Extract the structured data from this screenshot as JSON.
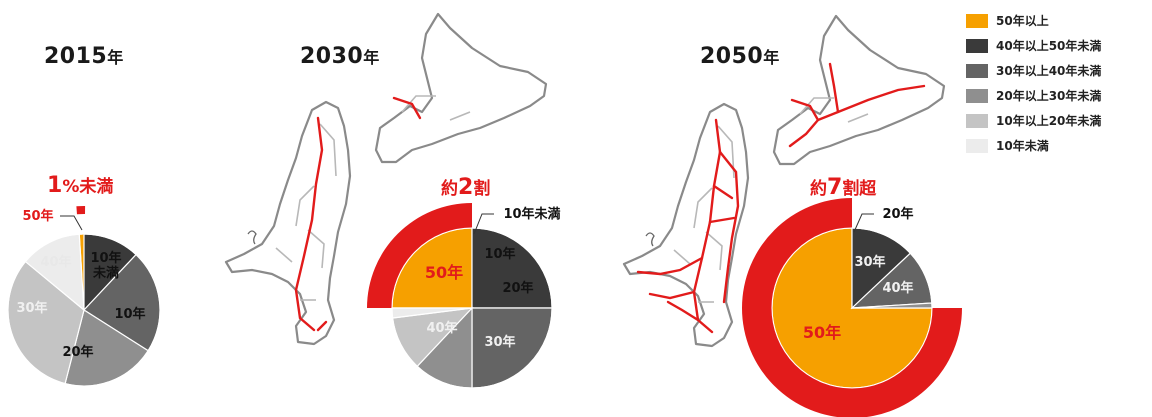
{
  "colors": {
    "c50": "#f6a000",
    "c40": "#3a3a3a",
    "c30": "#646464",
    "c20": "#8f8f8f",
    "c10": "#c4c4c4",
    "cU10": "#ececec",
    "accent": "#e21b1b",
    "map_fill": "#ffffff",
    "map_stroke": "#8a8a8a"
  },
  "legend": [
    {
      "label": "50年以上",
      "color_key": "c50"
    },
    {
      "label": "40年以上50年未満",
      "color_key": "c40"
    },
    {
      "label": "30年以上40年未満",
      "color_key": "c30"
    },
    {
      "label": "20年以上30年未満",
      "color_key": "c20"
    },
    {
      "label": "10年以上20年未満",
      "color_key": "c10"
    },
    {
      "label": "10年未満",
      "color_key": "cU10"
    }
  ],
  "panels": [
    {
      "year": "2015",
      "year_suffix": "年",
      "headline_num": "1",
      "headline_rest": "%未満"
    },
    {
      "year": "2030",
      "year_suffix": "年",
      "headline_pre": "約",
      "headline_num": "2",
      "headline_rest": "割"
    },
    {
      "year": "2050",
      "year_suffix": "年",
      "headline_pre": "約",
      "headline_num": "7",
      "headline_rest": "割超"
    }
  ],
  "chart_data": [
    {
      "type": "pie",
      "title": "2015年",
      "categories": [
        "50年以上",
        "40年以上50年未満",
        "30年以上40年未満",
        "20年以上30年未満",
        "10年以上20年未満",
        "10年未満"
      ],
      "values": [
        1,
        12,
        22,
        20,
        32,
        13
      ],
      "slice_labels": [
        "50年",
        "40年",
        "30年",
        "20年",
        "10年",
        "10年\n未満"
      ],
      "callout": "1%未満",
      "exploded_category": "50年以上"
    },
    {
      "type": "pie",
      "title": "2030年",
      "categories": [
        "50年以上",
        "40年以上50年未満",
        "30年以上40年未満",
        "20年以上30年未満",
        "10年以上20年未満",
        "10年未満"
      ],
      "values": [
        25,
        25,
        25,
        12,
        11,
        2
      ],
      "slice_labels": [
        "50年",
        "40年",
        "30年",
        "20年",
        "10年",
        "10年未満"
      ],
      "callout": "約2割",
      "exploded_category": "50年以上"
    },
    {
      "type": "pie",
      "title": "2050年",
      "categories": [
        "50年以上",
        "40年以上50年未満",
        "30年以上40年未満",
        "20年以上30年未満"
      ],
      "values": [
        75,
        13,
        11,
        1
      ],
      "slice_labels": [
        "50年",
        "40年",
        "30年",
        "20年"
      ],
      "callout": "約7割超",
      "exploded_category": "50年以上"
    }
  ]
}
